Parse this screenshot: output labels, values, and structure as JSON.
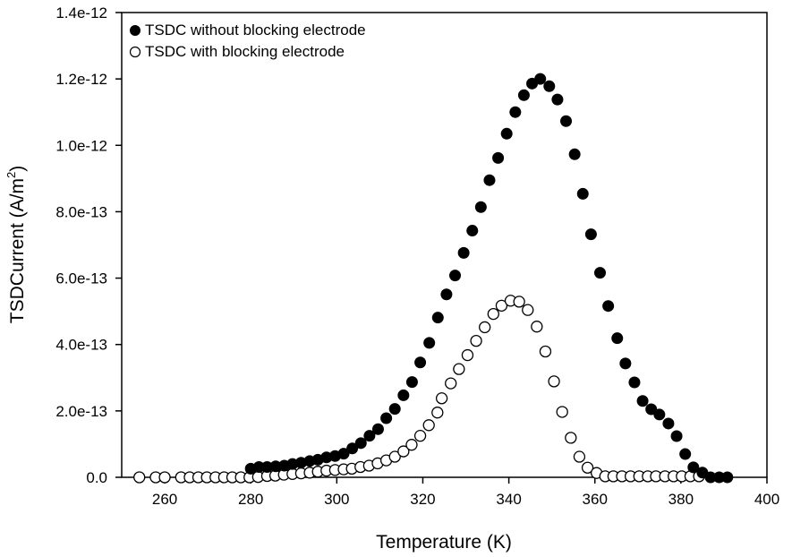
{
  "chart_data": {
    "type": "scatter",
    "title": "",
    "xlabel": "Temperature (K)",
    "ylabel": "TSDCurrent (A/m",
    "ylabel_sup": "2",
    "ylabel_close": ")",
    "xlim": [
      250,
      400
    ],
    "ylim": [
      0,
      1.4e-12
    ],
    "xticks": [
      260,
      280,
      300,
      320,
      340,
      360,
      380,
      400
    ],
    "xtick_labels": [
      "260",
      "280",
      "300",
      "320",
      "340",
      "360",
      "380",
      "400"
    ],
    "yticks": [
      0,
      2e-13,
      4e-13,
      6e-13,
      8e-13,
      1e-12,
      1.2e-12,
      1.4e-12
    ],
    "ytick_labels": [
      "0.0",
      "2.0e-13",
      "4.0e-13",
      "6.0e-13",
      "8.0e-13",
      "1.0e-12",
      "1.2e-12",
      "1.4e-12"
    ],
    "grid": false,
    "legend_position": "top-left",
    "series": [
      {
        "name": "TSDC without blocking electrode",
        "marker": "filled-circle",
        "color": "#000000",
        "x": [
          280,
          281.9,
          283.8,
          285.8,
          287.8,
          289.7,
          291.7,
          293.7,
          295.6,
          297.6,
          299.6,
          301.6,
          303.6,
          305.6,
          307.6,
          309.6,
          311.5,
          313.5,
          315.5,
          317.5,
          319.4,
          321.5,
          323.5,
          325.5,
          327.5,
          329.5,
          331.5,
          333.5,
          335.5,
          337.5,
          339.5,
          341.5,
          343.5,
          345.4,
          347.3,
          349.4,
          351.3,
          353.3,
          355.3,
          357.2,
          359.1,
          361.2,
          363.1,
          365.2,
          367.1,
          369.2,
          371.1,
          373.1,
          375.0,
          377.1,
          379.0,
          381.0,
          382.9,
          385.0,
          386.9,
          388.9,
          390.8
        ],
        "y_e12": [
          0.026,
          0.031,
          0.031,
          0.033,
          0.035,
          0.04,
          0.044,
          0.049,
          0.053,
          0.06,
          0.064,
          0.071,
          0.087,
          0.103,
          0.125,
          0.145,
          0.178,
          0.206,
          0.247,
          0.287,
          0.346,
          0.405,
          0.481,
          0.551,
          0.608,
          0.676,
          0.743,
          0.814,
          0.895,
          0.962,
          1.035,
          1.1,
          1.151,
          1.186,
          1.2,
          1.178,
          1.138,
          1.073,
          0.973,
          0.854,
          0.732,
          0.616,
          0.516,
          0.419,
          0.343,
          0.286,
          0.23,
          0.205,
          0.189,
          0.162,
          0.124,
          0.07,
          0.03,
          0.014,
          0.0,
          0.0,
          0.0
        ]
      },
      {
        "name": "TSDC with blocking electrode",
        "marker": "open-circle",
        "color": "#000000",
        "x": [
          254.1,
          257.9,
          260,
          263.8,
          265.8,
          267.8,
          269.8,
          271.8,
          273.8,
          275.7,
          277.7,
          279.7,
          281.7,
          283.8,
          285.7,
          287.7,
          289.7,
          291.7,
          293.7,
          295.6,
          297.6,
          299.6,
          301.6,
          303.5,
          305.5,
          307.5,
          309.5,
          311.5,
          313.5,
          315.5,
          317.4,
          319.4,
          321.4,
          323.4,
          324.4,
          326.5,
          328.4,
          330.4,
          332.4,
          334.4,
          336.4,
          338.3,
          340.4,
          342.4,
          344.4,
          346.5,
          348.5,
          350.5,
          352.4,
          354.4,
          356.4,
          358.3,
          360.4,
          362.4,
          364.3,
          366.3,
          368.3,
          370.3,
          372.3,
          374.2,
          376.3,
          378.3,
          380.2,
          382.2,
          384.2
        ],
        "y_e12": [
          0,
          0,
          0,
          0,
          0,
          0,
          0,
          0,
          0,
          0,
          0,
          0,
          0.001,
          0.004,
          0.005,
          0.008,
          0.01,
          0.012,
          0.014,
          0.017,
          0.02,
          0.022,
          0.024,
          0.026,
          0.031,
          0.035,
          0.042,
          0.051,
          0.062,
          0.078,
          0.098,
          0.125,
          0.157,
          0.195,
          0.238,
          0.283,
          0.326,
          0.368,
          0.411,
          0.452,
          0.492,
          0.517,
          0.532,
          0.529,
          0.504,
          0.454,
          0.379,
          0.289,
          0.197,
          0.119,
          0.062,
          0.029,
          0.013,
          0.003,
          0.003,
          0.003,
          0.003,
          0.003,
          0.003,
          0.003,
          0.003,
          0.003,
          0.003,
          0.003,
          0.003
        ]
      }
    ]
  }
}
